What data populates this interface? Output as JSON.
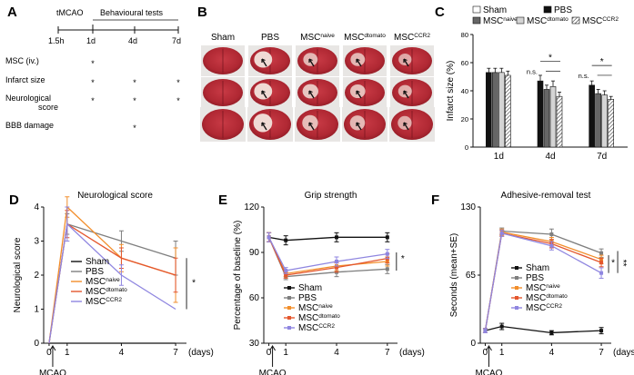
{
  "panels": {
    "A": {
      "label": "A",
      "header_left": "tMCAO",
      "header_right": "Behavioural tests",
      "timepoints": [
        "1.5h",
        "1d",
        "4d",
        "7d"
      ],
      "rows": [
        {
          "label": "MSC (iv.)",
          "marks": [
            "1d"
          ]
        },
        {
          "label": "Infarct size",
          "marks": [
            "1d",
            "4d",
            "7d"
          ]
        },
        {
          "label": "Neurological",
          "label2": "score",
          "marks": [
            "1d",
            "4d",
            "7d"
          ]
        },
        {
          "label": "BBB damage",
          "marks": [
            "4d"
          ]
        }
      ],
      "mark_symbol": "*"
    },
    "B": {
      "label": "B",
      "columns": [
        {
          "base": "Sham",
          "sup": ""
        },
        {
          "base": "PBS",
          "sup": ""
        },
        {
          "base": "MSC",
          "sup": "naive"
        },
        {
          "base": "MSC",
          "sup": "dtomato"
        },
        {
          "base": "MSC",
          "sup": "CCR2"
        }
      ]
    },
    "C": {
      "label": "C"
    },
    "D": {
      "label": "D"
    },
    "E": {
      "label": "E"
    },
    "F": {
      "label": "F"
    }
  },
  "legend_items": {
    "sham": "Sham",
    "pbs": "PBS",
    "msc": "MSC",
    "naive": "naive",
    "dtomato": "dtomato",
    "ccr2": "CCR2"
  },
  "series_colors": {
    "Sham": "#111111",
    "PBS": "#7f7f7f",
    "MSCnaive": "#f28e2b",
    "MSCdtomato": "#e4572e",
    "MSCCCR2": "#8f86e0"
  },
  "chart_data": [
    {
      "id": "C",
      "type": "bar",
      "title": "",
      "xlabel": "",
      "ylabel": "Infarct size (%)",
      "ylim": [
        0,
        80
      ],
      "yticks": [
        0,
        20,
        40,
        60,
        80
      ],
      "categories": [
        "1d",
        "4d",
        "7d"
      ],
      "series": [
        {
          "name": "Sham",
          "values": [
            null,
            null,
            null
          ],
          "errors": [
            null,
            null,
            null
          ],
          "fill": "white"
        },
        {
          "name": "PBS",
          "values": [
            53,
            47,
            44
          ],
          "errors": [
            3,
            4,
            3
          ],
          "fill": "black"
        },
        {
          "name": "MSCnaive",
          "values": [
            53,
            41,
            38
          ],
          "errors": [
            3,
            3,
            3
          ],
          "fill": "dgray"
        },
        {
          "name": "MSCdtomato",
          "values": [
            53,
            43,
            37
          ],
          "errors": [
            3,
            4,
            3
          ],
          "fill": "lgray"
        },
        {
          "name": "MSCCCR2",
          "values": [
            51,
            36,
            34
          ],
          "errors": [
            3,
            3,
            2
          ],
          "fill": "hatch"
        }
      ],
      "annotations": {
        "sig": "*",
        "ns": "n.s."
      },
      "legend": "top"
    },
    {
      "id": "D",
      "type": "line",
      "title": "Neurological score",
      "xlabel": "(days)",
      "ylabel": "Neurological score",
      "xlim": [
        -0.3,
        7.6
      ],
      "ylim": [
        0,
        4
      ],
      "x": [
        0,
        1,
        4,
        7
      ],
      "xticks": [
        "0",
        "1",
        "4",
        "7"
      ],
      "yticks": [
        0,
        1,
        2,
        3,
        4
      ],
      "marker": "line",
      "series": [
        {
          "name": "Sham",
          "values": [
            0,
            0,
            0,
            0
          ],
          "errors": [
            0,
            0,
            0,
            0
          ]
        },
        {
          "name": "PBS",
          "values": [
            0,
            3.5,
            3.0,
            2.5
          ],
          "errors": [
            0,
            0.3,
            0.3,
            0.5
          ]
        },
        {
          "name": "MSCnaive",
          "values": [
            0,
            4.0,
            2.5,
            2.0
          ],
          "errors": [
            0,
            0.3,
            0.4,
            0.8
          ]
        },
        {
          "name": "MSCdtomato",
          "values": [
            0,
            3.5,
            2.5,
            2.0
          ],
          "errors": [
            0,
            0.4,
            0.3,
            0.5
          ]
        },
        {
          "name": "MSCCCR2",
          "values": [
            0,
            3.5,
            2.0,
            1.0
          ],
          "errors": [
            0,
            0.5,
            0.3,
            0
          ]
        }
      ],
      "annotations": {
        "sig": "*",
        "arrow_label": "MCAO"
      },
      "legend": "bottom-center"
    },
    {
      "id": "E",
      "type": "line",
      "title": "Grip strength",
      "xlabel": "(days)",
      "ylabel": "Percentage of baseline (%)",
      "xlim": [
        -0.3,
        7.6
      ],
      "ylim": [
        30,
        120
      ],
      "x": [
        0,
        1,
        4,
        7
      ],
      "xticks": [
        "0",
        "1",
        "4",
        "7"
      ],
      "yticks": [
        30,
        60,
        90,
        120
      ],
      "marker": "square",
      "series": [
        {
          "name": "Sham",
          "values": [
            100,
            98,
            100,
            100
          ],
          "errors": [
            3,
            3,
            3,
            3
          ]
        },
        {
          "name": "PBS",
          "values": [
            100,
            74,
            77,
            79
          ],
          "errors": [
            3,
            2,
            3,
            3
          ]
        },
        {
          "name": "MSCnaive",
          "values": [
            100,
            76,
            81,
            84
          ],
          "errors": [
            3,
            2,
            3,
            3
          ]
        },
        {
          "name": "MSCdtomato",
          "values": [
            100,
            75,
            80,
            86
          ],
          "errors": [
            3,
            2,
            3,
            3
          ]
        },
        {
          "name": "MSCCCR2",
          "values": [
            100,
            78,
            84,
            89
          ],
          "errors": [
            3,
            2,
            3,
            3
          ]
        }
      ],
      "annotations": {
        "sig": "*",
        "arrow_label": "MCAO"
      },
      "legend": "bottom-center"
    },
    {
      "id": "F",
      "type": "line",
      "title": "Adhesive-removal test",
      "xlabel": "(days)",
      "ylabel": "Seconds (mean+SE)",
      "xlim": [
        -0.3,
        7.6
      ],
      "ylim": [
        0,
        130
      ],
      "x": [
        0,
        1,
        4,
        7
      ],
      "xticks": [
        "0",
        "1",
        "4",
        "7"
      ],
      "yticks": [
        0,
        65,
        130
      ],
      "marker": "square",
      "series": [
        {
          "name": "Sham",
          "values": [
            12,
            16,
            10,
            12
          ],
          "errors": [
            2,
            3,
            2,
            3
          ]
        },
        {
          "name": "PBS",
          "values": [
            12,
            107,
            104,
            86
          ],
          "errors": [
            2,
            3,
            5,
            4
          ]
        },
        {
          "name": "MSCnaive",
          "values": [
            12,
            106,
            97,
            80
          ],
          "errors": [
            2,
            3,
            4,
            4
          ]
        },
        {
          "name": "MSCdtomato",
          "values": [
            12,
            105,
            95,
            77
          ],
          "errors": [
            2,
            3,
            4,
            4
          ]
        },
        {
          "name": "MSCCCR2",
          "values": [
            12,
            105,
            93,
            67
          ],
          "errors": [
            2,
            3,
            4,
            5
          ]
        }
      ],
      "annotations": {
        "sig1": "*",
        "sig2": "**",
        "arrow_label": "MCAO"
      },
      "legend": "middle-right"
    }
  ]
}
